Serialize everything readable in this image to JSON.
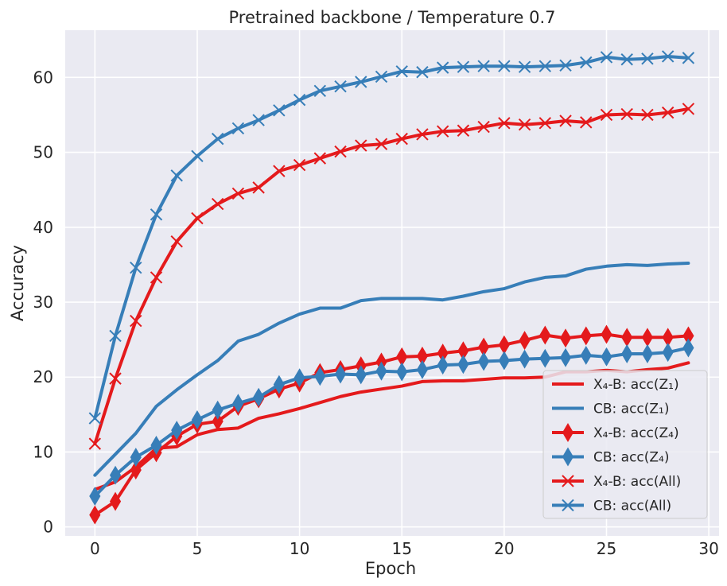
{
  "chart_data": {
    "type": "line",
    "title": "Pretrained backbone / Temperature 0.7",
    "xlabel": "Epoch",
    "ylabel": "Accuracy",
    "xlim": [
      -1.45,
      30.5
    ],
    "ylim": [
      -1.2,
      66.3
    ],
    "xticks": [
      0,
      5,
      10,
      15,
      20,
      25,
      30
    ],
    "yticks": [
      0,
      10,
      20,
      30,
      40,
      50,
      60
    ],
    "grid": true,
    "legend_position": "lower-right",
    "colors": {
      "red": "#e41a1c",
      "blue": "#377eb8",
      "background": "#eaeaf2",
      "grid": "#ffffff"
    },
    "x": [
      0,
      1,
      2,
      3,
      4,
      5,
      6,
      7,
      8,
      9,
      10,
      11,
      12,
      13,
      14,
      15,
      16,
      17,
      18,
      19,
      20,
      21,
      22,
      23,
      24,
      25,
      26,
      27,
      28,
      29
    ],
    "series": [
      {
        "name": "X₄-B: acc(Z₁)",
        "color": "#e41a1c",
        "marker": "none",
        "values": [
          5.0,
          6.0,
          8.0,
          10.5,
          10.7,
          12.3,
          13.0,
          13.2,
          14.5,
          15.1,
          15.8,
          16.6,
          17.4,
          18.0,
          18.4,
          18.8,
          19.4,
          19.5,
          19.5,
          19.7,
          19.9,
          19.9,
          20.0,
          20.7,
          20.7,
          20.9,
          20.7,
          21.0,
          21.2,
          21.9
        ]
      },
      {
        "name": "CB: acc(Z₁)",
        "color": "#377eb8",
        "marker": "none",
        "values": [
          6.9,
          9.7,
          12.5,
          16.1,
          18.3,
          20.3,
          22.2,
          24.8,
          25.7,
          27.2,
          28.4,
          29.2,
          29.2,
          30.2,
          30.5,
          30.5,
          30.5,
          30.3,
          30.8,
          31.4,
          31.8,
          32.7,
          33.3,
          33.5,
          34.4,
          34.8,
          35.0,
          34.9,
          35.1,
          35.2
        ]
      },
      {
        "name": "X₄-B: acc(Z₄)",
        "color": "#e41a1c",
        "marker": "diamond",
        "values": [
          1.6,
          3.4,
          7.6,
          9.9,
          12.1,
          13.7,
          14.1,
          16.1,
          17.1,
          18.4,
          19.2,
          20.6,
          21.0,
          21.5,
          22.0,
          22.7,
          22.8,
          23.2,
          23.5,
          24.0,
          24.3,
          24.9,
          25.6,
          25.2,
          25.5,
          25.7,
          25.3,
          25.3,
          25.3,
          25.5
        ]
      },
      {
        "name": "CB: acc(Z₄)",
        "color": "#377eb8",
        "marker": "diamond",
        "values": [
          4.1,
          6.9,
          9.3,
          10.9,
          12.9,
          14.3,
          15.6,
          16.5,
          17.3,
          19.0,
          19.9,
          20.1,
          20.4,
          20.3,
          20.8,
          20.7,
          21.0,
          21.6,
          21.7,
          22.1,
          22.2,
          22.4,
          22.5,
          22.6,
          22.9,
          22.7,
          23.1,
          23.1,
          23.3,
          23.9
        ]
      },
      {
        "name": "X₄-B: acc(All)",
        "color": "#e41a1c",
        "marker": "x",
        "values": [
          11.1,
          19.8,
          27.5,
          33.3,
          38.1,
          41.2,
          43.1,
          44.5,
          45.3,
          47.5,
          48.3,
          49.2,
          50.1,
          50.9,
          51.1,
          51.8,
          52.4,
          52.8,
          52.9,
          53.4,
          53.9,
          53.7,
          53.9,
          54.2,
          54.0,
          55.0,
          55.1,
          55.0,
          55.3,
          55.8
        ]
      },
      {
        "name": "CB: acc(All)",
        "color": "#377eb8",
        "marker": "x",
        "values": [
          14.5,
          25.5,
          34.6,
          41.7,
          46.9,
          49.5,
          51.8,
          53.2,
          54.3,
          55.6,
          57.0,
          58.2,
          58.8,
          59.4,
          60.1,
          60.8,
          60.7,
          61.3,
          61.4,
          61.5,
          61.5,
          61.4,
          61.5,
          61.6,
          62.0,
          62.7,
          62.4,
          62.5,
          62.8,
          62.6
        ]
      }
    ]
  }
}
